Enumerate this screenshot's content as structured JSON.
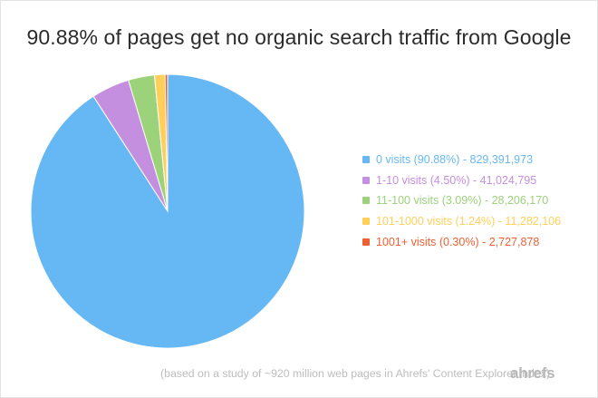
{
  "chart_data": {
    "type": "pie",
    "title": "90.88% of pages get no organic search traffic from Google",
    "slices": [
      {
        "label": "0 visits (90.88%) - 829,391,973",
        "value": 90.88,
        "color": "#66b8f5"
      },
      {
        "label": "1-10 visits (4.50%) - 41,024,795",
        "value": 4.5,
        "color": "#c58fdf"
      },
      {
        "label": "11-100 visits (3.09%) - 28,206,170",
        "value": 3.09,
        "color": "#9bd27a"
      },
      {
        "label": "101-1000 visits (1.24%) - 11,282,106",
        "value": 1.24,
        "color": "#ffcf5a"
      },
      {
        "label": "1001+ visits (0.30%) - 2,727,878",
        "value": 0.3,
        "color": "#ee5f32"
      }
    ],
    "start_angle": "12 o'clock",
    "direction": "clockwise",
    "legend_position": "right"
  },
  "footnote": "(based on a study of ~920 million web pages in Ahrefs' Content Explorer index)",
  "logo": "ahrefs"
}
